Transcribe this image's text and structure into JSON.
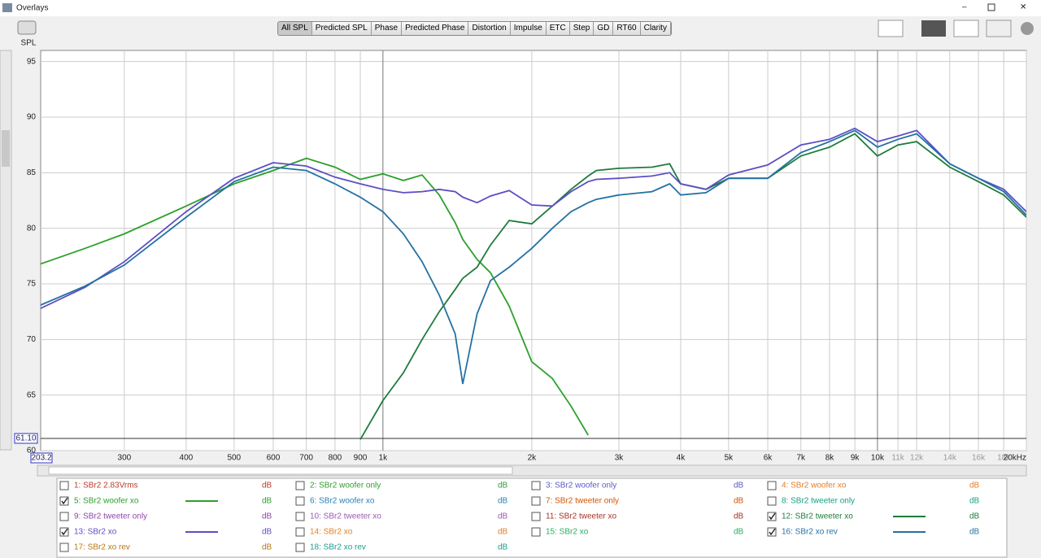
{
  "window": {
    "title": "Overlays"
  },
  "toolbar": {
    "buttons": [
      "All SPL",
      "Predicted SPL",
      "Phase",
      "Predicted Phase",
      "Distortion",
      "Impulse",
      "ETC",
      "Step",
      "GD",
      "RT60",
      "Clarity"
    ],
    "active": 0
  },
  "chart_data": {
    "type": "line",
    "y_label": "SPL",
    "xscale": "log",
    "grid": true,
    "xlim": [
      203.2,
      20000
    ],
    "ylim": [
      60,
      96
    ],
    "yticks": [
      60,
      65,
      70,
      75,
      80,
      85,
      90,
      95
    ],
    "xticks": [
      300,
      400,
      500,
      600,
      700,
      800,
      900,
      {
        "value": 1000,
        "label": "1k"
      },
      {
        "value": 2000,
        "label": "2k"
      },
      {
        "value": 3000,
        "label": "3k"
      },
      {
        "value": 4000,
        "label": "4k"
      },
      {
        "value": 5000,
        "label": "5k"
      },
      {
        "value": 6000,
        "label": "6k"
      },
      {
        "value": 7000,
        "label": "7k"
      },
      {
        "value": 8000,
        "label": "8k"
      },
      {
        "value": 9000,
        "label": "9k"
      },
      {
        "value": 10000,
        "label": "10k"
      },
      {
        "value": 11000,
        "label": "11k"
      },
      {
        "value": 12000,
        "label": "12k"
      },
      {
        "value": 14000,
        "label": "14k"
      },
      {
        "value": 16000,
        "label": "16k"
      },
      {
        "value": 18000,
        "label": "18k"
      },
      {
        "value": 20000,
        "label": "20kHz"
      }
    ],
    "cursor": {
      "x": 203.2,
      "y": {
        "value": 61.1,
        "label": "61.10"
      }
    },
    "x": [
      203.2,
      250,
      300,
      400,
      500,
      600,
      700,
      800,
      900,
      1000,
      1100,
      1200,
      1300,
      1400,
      1450,
      1550,
      1650,
      1800,
      2000,
      2200,
      2400,
      2600,
      2700,
      3000,
      3500,
      3800,
      4000,
      4500,
      5000,
      6000,
      7000,
      8000,
      9000,
      10000,
      11000,
      12000,
      14000,
      16000,
      18000,
      20000
    ],
    "unit": "dB",
    "series": [
      {
        "name": "1: SBr2 2.83Vrms",
        "color": "#c0392b",
        "checked": false
      },
      {
        "name": "2: SBr2 woofer only",
        "color": "#2e9e2e",
        "checked": false
      },
      {
        "name": "3: SBr2 woofer only",
        "color": "#5a5acd",
        "checked": false
      },
      {
        "name": "4: SBr2 woofer xo",
        "color": "#e67e22",
        "checked": false
      },
      {
        "name": "5: SBr2 woofer xo",
        "color": "#2ca02c",
        "checked": true,
        "values": [
          76.8,
          78.2,
          79.5,
          82,
          84,
          85.2,
          86.3,
          85.5,
          84.4,
          84.9,
          84.3,
          84.8,
          83,
          80.5,
          79,
          77.2,
          76,
          73,
          68,
          66.5,
          64,
          61.4,
          null,
          null,
          null,
          null,
          null,
          null,
          null,
          null,
          null,
          null,
          null,
          null,
          null,
          null,
          null,
          null,
          null,
          null
        ]
      },
      {
        "name": "6: SBr2 woofer xo",
        "color": "#2980b9",
        "checked": false
      },
      {
        "name": "7: SBr2 tweeter only",
        "color": "#d35400",
        "checked": false
      },
      {
        "name": "8: SBr2 tweeter only",
        "color": "#16a085",
        "checked": false
      },
      {
        "name": "9: SBr2 tweeter only",
        "color": "#8e44ad",
        "checked": false
      },
      {
        "name": "10: SBr2 tweeter xo",
        "color": "#9b59b6",
        "checked": false
      },
      {
        "name": "11: SBr2 tweeter xo",
        "color": "#a93226",
        "checked": false
      },
      {
        "name": "12: SBr2 tweeter xo",
        "color": "#1e7b3c",
        "checked": true,
        "values": [
          null,
          null,
          null,
          null,
          null,
          null,
          null,
          null,
          61,
          64.5,
          67,
          70,
          72.5,
          74.5,
          75.5,
          76.5,
          78.5,
          80.7,
          80.4,
          82,
          83.5,
          84.7,
          85.2,
          85.4,
          85.5,
          85.8,
          84,
          83.5,
          84.5,
          84.5,
          86.5,
          87.3,
          88.5,
          86.5,
          87.5,
          87.8,
          85.5,
          84.2,
          83,
          81
        ]
      },
      {
        "name": "13: SBr2 xo",
        "color": "#5b4fc4",
        "checked": true,
        "values": [
          72.8,
          74.7,
          77,
          81.5,
          84.5,
          85.9,
          85.6,
          84.6,
          84,
          83.5,
          83.2,
          83.3,
          83.5,
          83.3,
          82.8,
          82.3,
          82.9,
          83.4,
          82.1,
          82,
          83.3,
          84.2,
          84.4,
          84.5,
          84.7,
          85,
          84,
          83.5,
          84.8,
          85.7,
          87.5,
          88,
          89,
          87.8,
          88.3,
          88.8,
          85.8,
          84.5,
          83.5,
          81.5
        ]
      },
      {
        "name": "14: SBr2 xo",
        "color": "#e67e22",
        "checked": false
      },
      {
        "name": "15: SBr2 xo",
        "color": "#27ae60",
        "checked": false
      },
      {
        "name": "16: SBr2 xo rev",
        "color": "#2471a3",
        "checked": true,
        "values": [
          73.1,
          74.8,
          76.7,
          81,
          84.2,
          85.5,
          85.2,
          84,
          82.8,
          81.5,
          79.5,
          77,
          74,
          70.5,
          66,
          72.3,
          75.3,
          76.5,
          78.2,
          80,
          81.5,
          82.3,
          82.6,
          83,
          83.3,
          84,
          83,
          83.2,
          84.5,
          84.5,
          86.8,
          87.8,
          88.8,
          87.3,
          88,
          88.5,
          85.8,
          84.5,
          83.3,
          81.2
        ]
      },
      {
        "name": "17: SBr2 xo rev",
        "color": "#b9770e",
        "checked": false
      },
      {
        "name": "18: SBr2 xo rev",
        "color": "#1a9c8c",
        "checked": false
      }
    ]
  }
}
